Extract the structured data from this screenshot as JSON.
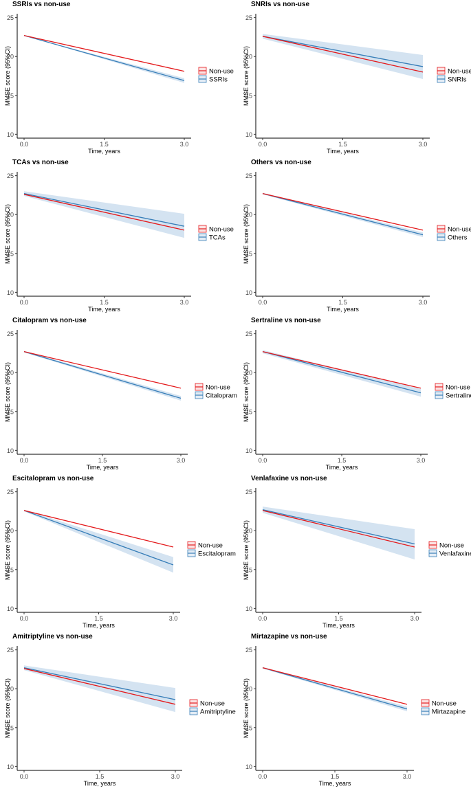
{
  "figure": {
    "ylabel": "MMSE score (95%CI)",
    "xlabel": "Time, years",
    "x_ticks": [
      "0.0",
      "1.5",
      "3.0"
    ],
    "y_ticks": [
      "10",
      "15",
      "20",
      "25"
    ],
    "colors": {
      "nonuse": "#e41a1c",
      "drug": "#377eb8",
      "band": "#c6d9ec"
    }
  },
  "chart_data": [
    {
      "type": "line",
      "title": "SSRIs vs non-use",
      "xlabel": "Time, years",
      "ylabel": "MMSE score (95%CI)",
      "xlim": [
        0,
        3
      ],
      "ylim": [
        9.5,
        25.5
      ],
      "series": [
        {
          "name": "Non-use",
          "x": [
            0,
            3
          ],
          "y": [
            22.7,
            18.1
          ]
        },
        {
          "name": "SSRIs",
          "x": [
            0,
            3
          ],
          "y": [
            22.7,
            16.9
          ],
          "ci_lower": [
            22.7,
            16.6
          ],
          "ci_upper": [
            22.7,
            17.2
          ]
        }
      ]
    },
    {
      "type": "line",
      "title": "SNRIs vs non-use",
      "xlabel": "Time, years",
      "ylabel": "MMSE score (95%CI)",
      "xlim": [
        0,
        3
      ],
      "ylim": [
        9.5,
        25.5
      ],
      "series": [
        {
          "name": "Non-use",
          "x": [
            0,
            3
          ],
          "y": [
            22.6,
            18.0
          ]
        },
        {
          "name": "SNRIs",
          "x": [
            0,
            3
          ],
          "y": [
            22.6,
            18.7
          ],
          "ci_lower": [
            22.3,
            17.1
          ],
          "ci_upper": [
            22.9,
            20.2
          ]
        }
      ]
    },
    {
      "type": "line",
      "title": "TCAs vs non-use",
      "xlabel": "Time, years",
      "ylabel": "MMSE score (95%CI)",
      "xlim": [
        0,
        3
      ],
      "ylim": [
        9.5,
        25.5
      ],
      "series": [
        {
          "name": "Non-use",
          "x": [
            0,
            3
          ],
          "y": [
            22.6,
            18.0
          ]
        },
        {
          "name": "TCAs",
          "x": [
            0,
            3
          ],
          "y": [
            22.7,
            18.5
          ],
          "ci_lower": [
            22.4,
            17.0
          ],
          "ci_upper": [
            23.0,
            20.1
          ]
        }
      ]
    },
    {
      "type": "line",
      "title": "Others vs non-use",
      "xlabel": "Time, years",
      "ylabel": "MMSE score (95%CI)",
      "xlim": [
        0,
        3
      ],
      "ylim": [
        9.5,
        25.5
      ],
      "series": [
        {
          "name": "Non-use",
          "x": [
            0,
            3
          ],
          "y": [
            22.7,
            18.0
          ]
        },
        {
          "name": "Others",
          "x": [
            0,
            3
          ],
          "y": [
            22.7,
            17.4
          ],
          "ci_lower": [
            22.6,
            17.1
          ],
          "ci_upper": [
            22.8,
            17.7
          ]
        }
      ]
    },
    {
      "type": "line",
      "title": "Citalopram vs non-use",
      "xlabel": "Time, years",
      "ylabel": "MMSE score (95%CI)",
      "xlim": [
        0,
        3
      ],
      "ylim": [
        9.5,
        25.5
      ],
      "series": [
        {
          "name": "Non-use",
          "x": [
            0,
            3
          ],
          "y": [
            22.7,
            18.0
          ]
        },
        {
          "name": "Citalopram",
          "x": [
            0,
            3
          ],
          "y": [
            22.7,
            16.7
          ],
          "ci_lower": [
            22.6,
            16.4
          ],
          "ci_upper": [
            22.8,
            17.0
          ]
        }
      ]
    },
    {
      "type": "line",
      "title": "Sertraline vs non-use",
      "xlabel": "Time, years",
      "ylabel": "MMSE score (95%CI)",
      "xlim": [
        0,
        3
      ],
      "ylim": [
        9.5,
        25.5
      ],
      "series": [
        {
          "name": "Non-use",
          "x": [
            0,
            3
          ],
          "y": [
            22.7,
            18.0
          ]
        },
        {
          "name": "Sertraline",
          "x": [
            0,
            3
          ],
          "y": [
            22.7,
            17.4
          ],
          "ci_lower": [
            22.5,
            16.9
          ],
          "ci_upper": [
            22.9,
            17.9
          ]
        }
      ]
    },
    {
      "type": "line",
      "title": "Escitalopram vs non-use",
      "xlabel": "Time, years",
      "ylabel": "MMSE score (95%CI)",
      "xlim": [
        0,
        3
      ],
      "ylim": [
        9.5,
        25.5
      ],
      "series": [
        {
          "name": "Non-use",
          "x": [
            0,
            3
          ],
          "y": [
            22.6,
            17.9
          ]
        },
        {
          "name": "Escitalopram",
          "x": [
            0,
            3
          ],
          "y": [
            22.6,
            15.6
          ],
          "ci_lower": [
            22.5,
            14.6
          ],
          "ci_upper": [
            22.7,
            16.6
          ]
        }
      ]
    },
    {
      "type": "line",
      "title": "Venlafaxine vs non-use",
      "xlabel": "Time, years",
      "ylabel": "MMSE score (95%CI)",
      "xlim": [
        0,
        3
      ],
      "ylim": [
        9.5,
        25.5
      ],
      "series": [
        {
          "name": "Non-use",
          "x": [
            0,
            3
          ],
          "y": [
            22.6,
            17.9
          ]
        },
        {
          "name": "Venlafaxine",
          "x": [
            0,
            3
          ],
          "y": [
            22.7,
            18.3
          ],
          "ci_lower": [
            22.3,
            16.3
          ],
          "ci_upper": [
            23.1,
            20.2
          ]
        }
      ]
    },
    {
      "type": "line",
      "title": "Amitriptyline vs non-use",
      "xlabel": "Time, years",
      "ylabel": "MMSE score (95%CI)",
      "xlim": [
        0,
        3
      ],
      "ylim": [
        9.5,
        25.5
      ],
      "series": [
        {
          "name": "Non-use",
          "x": [
            0,
            3
          ],
          "y": [
            22.6,
            18.0
          ]
        },
        {
          "name": "Amitriptyline",
          "x": [
            0,
            3
          ],
          "y": [
            22.7,
            18.6
          ],
          "ci_lower": [
            22.4,
            17.0
          ],
          "ci_upper": [
            23.0,
            20.1
          ]
        }
      ]
    },
    {
      "type": "line",
      "title": "Mirtazapine vs non-use",
      "xlabel": "Time, years",
      "ylabel": "MMSE score (95%CI)",
      "xlim": [
        0,
        3
      ],
      "ylim": [
        9.5,
        25.5
      ],
      "series": [
        {
          "name": "Non-use",
          "x": [
            0,
            3
          ],
          "y": [
            22.7,
            18.0
          ]
        },
        {
          "name": "Mirtazapine",
          "x": [
            0,
            3
          ],
          "y": [
            22.7,
            17.4
          ],
          "ci_lower": [
            22.6,
            17.1
          ],
          "ci_upper": [
            22.8,
            17.7
          ]
        }
      ]
    }
  ]
}
